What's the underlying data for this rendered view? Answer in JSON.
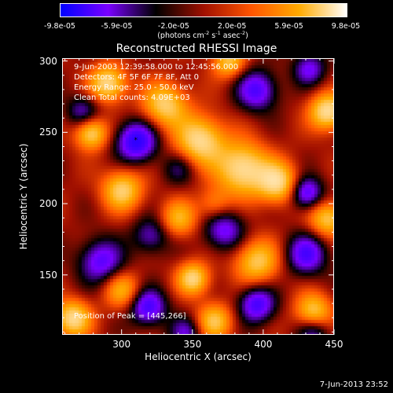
{
  "chart_data": {
    "type": "heatmap",
    "title": "Reconstructed RHESSI Image",
    "xlabel": "Heliocentric X (arcsec)",
    "ylabel": "Heliocentric Y (arcsec)",
    "xlim": [
      258,
      450
    ],
    "ylim": [
      108,
      302
    ],
    "xticks": [
      "300",
      "350",
      "400",
      "450"
    ],
    "xtick_values": [
      300,
      350,
      400,
      450
    ],
    "yticks": [
      "300",
      "250",
      "200",
      "150"
    ],
    "ytick_values": [
      300,
      250,
      200,
      150
    ],
    "colorbar": {
      "min": -9.8e-05,
      "max": 9.8e-05,
      "ticks": [
        "-9.8e-05",
        "-5.9e-05",
        "-2.0e-05",
        "2.0e-05",
        "5.9e-05",
        "9.8e-05"
      ],
      "tick_values": [
        -9.8e-05,
        -5.9e-05,
        -2e-05,
        2e-05,
        5.9e-05,
        9.8e-05
      ],
      "label_main": "(photons cm",
      "label_sup1": "-2",
      "label_mid1": " s",
      "label_sup2": "-1",
      "label_mid2": " asec",
      "label_sup3": "-2",
      "label_end": ")",
      "colors": [
        "#0000ff",
        "#7a00ff",
        "#000000",
        "#a01000",
        "#ff5500",
        "#ffaa00",
        "#ffffff"
      ]
    },
    "annotations": {
      "time_range": "9-Jun-2003 12:39:58.000 to 12:45:56.000",
      "detectors": "Detectors: 4F 5F 6F 7F 8F, Att 0",
      "energy": "Energy Range: 25.0 - 50.0 keV",
      "method": "Clean     Total counts: 4.09E+03",
      "peak": "Position of Peak = [445,266]"
    },
    "peak_marker": {
      "x": 310,
      "y": 244,
      "symbol": "*"
    },
    "sources": [
      {
        "x": 290,
        "y": 285,
        "v": 0.9,
        "s": 9
      },
      {
        "x": 278,
        "y": 250,
        "v": 0.85,
        "s": 8
      },
      {
        "x": 330,
        "y": 270,
        "v": 0.8,
        "s": 11
      },
      {
        "x": 355,
        "y": 245,
        "v": 0.9,
        "s": 12
      },
      {
        "x": 385,
        "y": 225,
        "v": 0.95,
        "s": 13
      },
      {
        "x": 410,
        "y": 215,
        "v": 0.85,
        "s": 10
      },
      {
        "x": 445,
        "y": 190,
        "v": 0.75,
        "s": 9
      },
      {
        "x": 445,
        "y": 265,
        "v": 0.95,
        "s": 9
      },
      {
        "x": 375,
        "y": 300,
        "v": 0.7,
        "s": 8
      },
      {
        "x": 300,
        "y": 210,
        "v": 0.8,
        "s": 10
      },
      {
        "x": 340,
        "y": 190,
        "v": 0.6,
        "s": 9
      },
      {
        "x": 395,
        "y": 160,
        "v": 0.75,
        "s": 11
      },
      {
        "x": 350,
        "y": 148,
        "v": 0.85,
        "s": 8
      },
      {
        "x": 300,
        "y": 140,
        "v": 0.6,
        "s": 9
      },
      {
        "x": 265,
        "y": 120,
        "v": 0.9,
        "s": 9
      },
      {
        "x": 365,
        "y": 118,
        "v": 0.7,
        "s": 9
      },
      {
        "x": 435,
        "y": 125,
        "v": 0.75,
        "s": 9
      },
      {
        "x": 310,
        "y": 244,
        "v": -0.95,
        "s": 10
      },
      {
        "x": 272,
        "y": 265,
        "v": -0.5,
        "s": 8
      },
      {
        "x": 395,
        "y": 280,
        "v": -0.75,
        "s": 10
      },
      {
        "x": 432,
        "y": 295,
        "v": -0.6,
        "s": 8
      },
      {
        "x": 340,
        "y": 225,
        "v": -0.35,
        "s": 8
      },
      {
        "x": 430,
        "y": 208,
        "v": -0.8,
        "s": 8
      },
      {
        "x": 285,
        "y": 160,
        "v": -0.7,
        "s": 11
      },
      {
        "x": 320,
        "y": 178,
        "v": -0.5,
        "s": 9
      },
      {
        "x": 372,
        "y": 182,
        "v": -0.65,
        "s": 10
      },
      {
        "x": 430,
        "y": 165,
        "v": -0.75,
        "s": 10
      },
      {
        "x": 318,
        "y": 128,
        "v": -0.8,
        "s": 9
      },
      {
        "x": 395,
        "y": 130,
        "v": -0.8,
        "s": 9
      },
      {
        "x": 435,
        "y": 110,
        "v": -0.5,
        "s": 8
      },
      {
        "x": 345,
        "y": 110,
        "v": -0.5,
        "s": 8
      },
      {
        "x": 365,
        "y": 200,
        "v": 0.4,
        "s": 8
      }
    ]
  },
  "footer": {
    "date": "7-Jun-2013 23:52"
  }
}
